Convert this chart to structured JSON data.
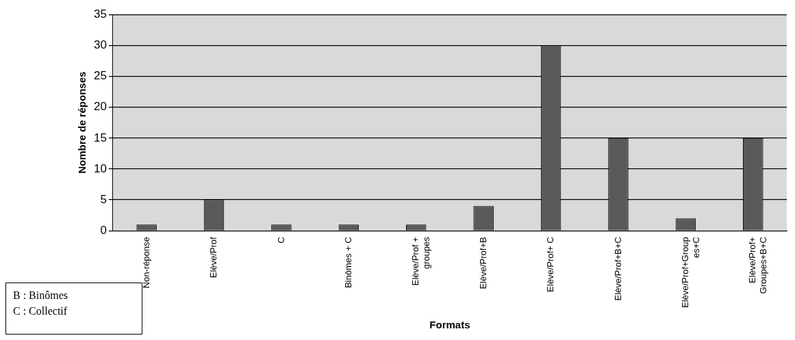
{
  "chart_data": {
    "type": "bar",
    "xlabel": "Formats",
    "ylabel": "Nombre de réponses",
    "categories": [
      "Non-réponse",
      "Elève/Prof",
      "C",
      "Binômes + C",
      "Elève/Prof + groupes",
      "Elève/Prof+B",
      "Elève/Prof+ C",
      "Elève/Prof+B+C",
      "Elève/Prof+Groupes+C",
      "Elève/Prof+ Groupes+B+C"
    ],
    "values": [
      1,
      5,
      1,
      1,
      1,
      4,
      30,
      15,
      2,
      15
    ],
    "color": "#5a5a5a",
    "ylim": [
      0,
      35
    ],
    "yticks": [
      0,
      5,
      10,
      15,
      20,
      25,
      30,
      35
    ],
    "grid": "y",
    "annotations": [
      "B : Binômes",
      "C : Collectif"
    ]
  }
}
